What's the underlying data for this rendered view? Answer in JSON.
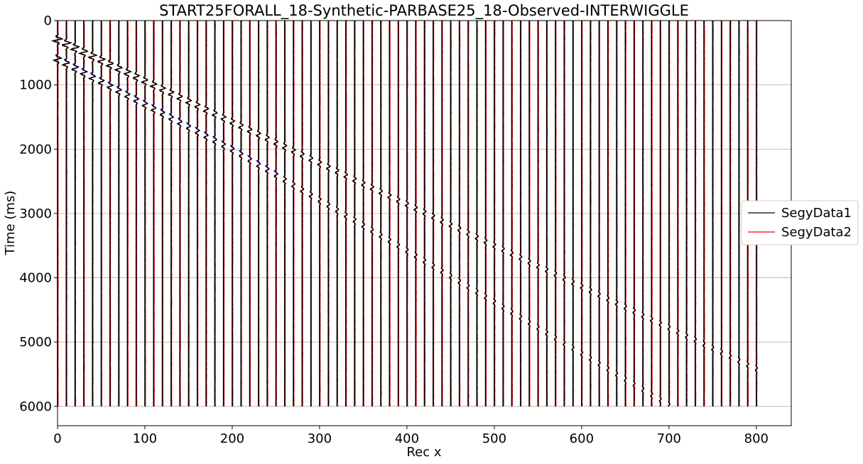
{
  "chart_data": {
    "type": "line",
    "title": "START25FORALL_18-Synthetic-PARBASE25_18-Observed-INTERWIGGLE",
    "xlabel": "Rec x",
    "ylabel": "Time (ms)",
    "xlim": [
      0,
      840
    ],
    "ylim": [
      6300,
      0
    ],
    "y_inverted": true,
    "xticks": [
      0,
      100,
      200,
      300,
      400,
      500,
      600,
      700,
      800
    ],
    "yticks": [
      0,
      1000,
      2000,
      3000,
      4000,
      5000,
      6000
    ],
    "grid": "horizontal",
    "legend_position": "center-right",
    "trace_spacing": 10,
    "trace_first": 0,
    "trace_last": 800,
    "trace_time_range": [
      0,
      6000
    ],
    "series": [
      {
        "name": "SegyData1",
        "color": "#000000",
        "arrivals": [
          {
            "x": [
              0,
              200,
              400,
              600,
              800
            ],
            "t": [
              300,
              1580,
              2860,
              4140,
              5420
            ]
          },
          {
            "x": [
              0,
              200,
              400,
              600,
              700
            ],
            "t": [
              600,
              2010,
              3580,
              5180,
              5980
            ]
          }
        ]
      },
      {
        "name": "SegyData2",
        "color": "#ff0000",
        "arrivals": [
          {
            "x": [
              0,
              200,
              400,
              600,
              800
            ],
            "t": [
              300,
              1580,
              2860,
              4140,
              5420
            ]
          },
          {
            "x": [
              0,
              200,
              400,
              600,
              700
            ],
            "t": [
              600,
              2010,
              3580,
              5180,
              5980
            ]
          }
        ]
      }
    ],
    "accent_color": "#00008b"
  }
}
